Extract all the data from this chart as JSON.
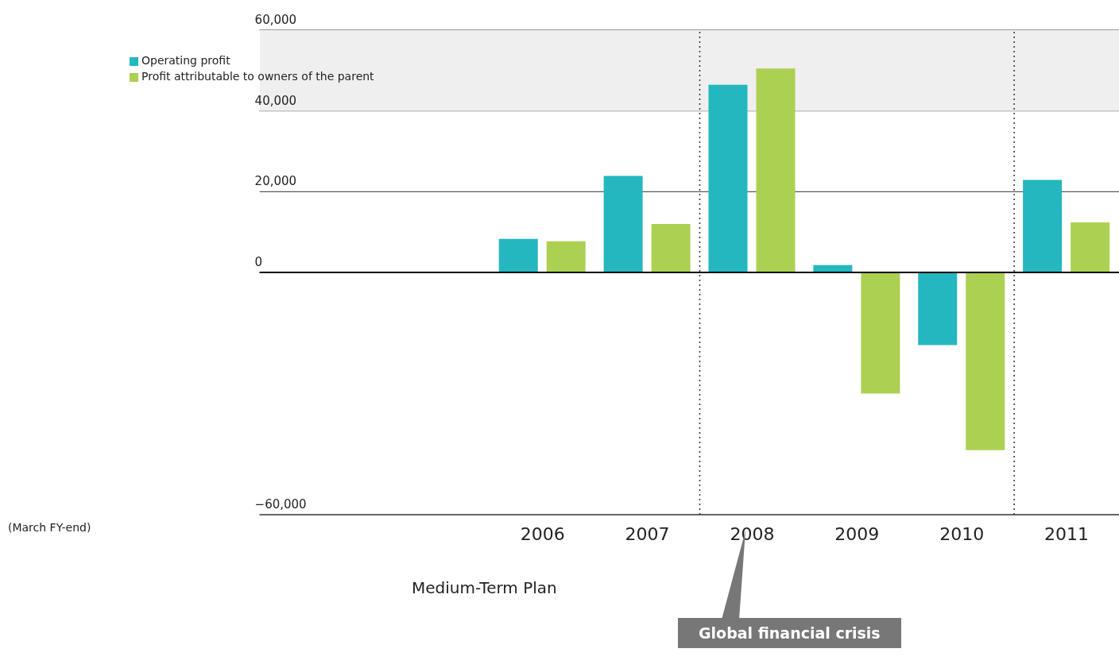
{
  "chart_data": {
    "type": "bar",
    "x": [
      2006,
      2007,
      2008,
      2009,
      2010,
      2011
    ],
    "series": [
      {
        "name": "Operating profit",
        "color": "#24b7c0",
        "values": [
          8300,
          23900,
          46500,
          1800,
          -18000,
          22900
        ]
      },
      {
        "name": "Profit attributable to owners of the parent",
        "color": "#acd052",
        "values": [
          7700,
          12000,
          50500,
          -30000,
          -44000,
          12400
        ]
      }
    ],
    "xlim": [
      2003.3,
      2011.5
    ],
    "xticks": [
      2006,
      2007,
      2008,
      2009,
      2010,
      2011
    ],
    "ylim": [
      -60000,
      60000
    ],
    "yticks": [
      {
        "value": -60000,
        "label": "−60,000"
      },
      {
        "value": 0,
        "label": "0"
      },
      {
        "value": 20000,
        "label": "20,000"
      },
      {
        "value": 40000,
        "label": "40,000"
      },
      {
        "value": 60000,
        "label": "60,000"
      }
    ],
    "grid": "y",
    "legend": "top left",
    "ref_lines": [
      {
        "axis": "x",
        "value": 2007.5,
        "line_style": "dotted",
        "color": "#333333"
      },
      {
        "axis": "x",
        "value": 2010.5,
        "line_style": "dotted",
        "color": "#333333"
      }
    ],
    "bands": [
      {
        "axis": "y",
        "from": 40000,
        "to": 60000,
        "color": "#efefef"
      }
    ],
    "annotations": [
      "(March FY-end)",
      "Medium-Term Plan",
      "Global financial crisis"
    ]
  }
}
